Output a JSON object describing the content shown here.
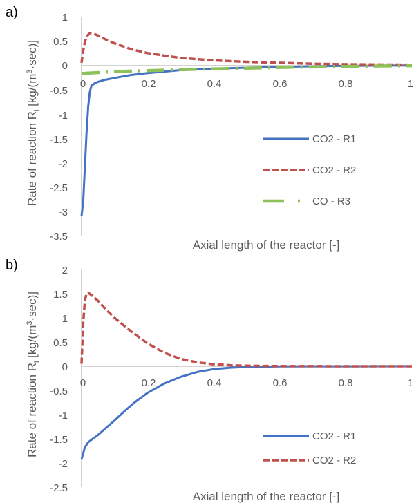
{
  "colors": {
    "r1": "#4472c4",
    "r2": "#c0504d",
    "r3": "#8fc15a",
    "axis": "#a6a6a6",
    "text": "#595959"
  },
  "chart_data": [
    {
      "panel_label": "a)",
      "type": "line",
      "xlabel": "Axial length of the reactor [-]",
      "ylabel_main": "Rate of reaction R",
      "ylabel_sub": "i",
      "ylabel_unit_start": " [kg/(m",
      "ylabel_sup": "3",
      "ylabel_unit_end": "·sec)]",
      "xlim": [
        0,
        1
      ],
      "ylim": [
        -3.5,
        1
      ],
      "x_ticks": [
        "0",
        "0.2",
        "0.4",
        "0.6",
        "0.8",
        "1"
      ],
      "y_ticks": [
        "1",
        "0.5",
        "0",
        "-0.5",
        "-1",
        "-1.5",
        "-2",
        "-2.5",
        "-3",
        "-3.5"
      ],
      "grid": false,
      "legend_position": "right",
      "series": [
        {
          "name": "CO2 - R1",
          "style": "solid",
          "x": [
            0,
            0.005,
            0.01,
            0.015,
            0.02,
            0.025,
            0.03,
            0.04,
            0.05,
            0.07,
            0.1,
            0.15,
            0.2,
            0.3,
            0.4,
            0.5,
            0.6,
            0.7,
            0.8,
            0.9,
            1.0
          ],
          "y": [
            -3.1,
            -2.8,
            -2.1,
            -1.4,
            -0.85,
            -0.55,
            -0.42,
            -0.37,
            -0.34,
            -0.3,
            -0.26,
            -0.2,
            -0.16,
            -0.1,
            -0.07,
            -0.05,
            -0.035,
            -0.02,
            -0.012,
            -0.008,
            -0.005
          ]
        },
        {
          "name": "CO2 - R2",
          "style": "dashed",
          "x": [
            0,
            0.005,
            0.01,
            0.015,
            0.02,
            0.025,
            0.03,
            0.04,
            0.05,
            0.07,
            0.1,
            0.15,
            0.2,
            0.3,
            0.4,
            0.5,
            0.6,
            0.7,
            0.8,
            0.9,
            1.0
          ],
          "y": [
            0.05,
            0.3,
            0.48,
            0.58,
            0.63,
            0.66,
            0.66,
            0.64,
            0.61,
            0.54,
            0.45,
            0.33,
            0.25,
            0.15,
            0.1,
            0.07,
            0.05,
            0.03,
            0.02,
            0.015,
            0.01
          ]
        },
        {
          "name": "CO - R3",
          "style": "dash-dot",
          "x": [
            0,
            0.05,
            0.1,
            0.2,
            0.3,
            0.4,
            0.5,
            0.6,
            0.7,
            0.8,
            0.9,
            1.0
          ],
          "y": [
            -0.17,
            -0.15,
            -0.13,
            -0.11,
            -0.09,
            -0.075,
            -0.06,
            -0.045,
            -0.035,
            -0.025,
            -0.015,
            -0.01
          ]
        }
      ]
    },
    {
      "panel_label": "b)",
      "type": "line",
      "xlabel": "Axial length of the reactor [-]",
      "ylabel_main": "Rate of reaction R",
      "ylabel_sub": "i",
      "ylabel_unit_start": " [kg/(m",
      "ylabel_sup": "3",
      "ylabel_unit_end": "·sec)]",
      "xlim": [
        0,
        1
      ],
      "ylim": [
        -2.5,
        2
      ],
      "x_ticks": [
        "0",
        "0.2",
        "0.4",
        "0.6",
        "0.8",
        "1"
      ],
      "y_ticks": [
        "2",
        "1.5",
        "1",
        "0.5",
        "0",
        "-0.5",
        "-1",
        "-1.5",
        "-2",
        "-2.5"
      ],
      "grid": false,
      "legend_position": "right",
      "series": [
        {
          "name": "CO2 - R1",
          "style": "solid",
          "x": [
            0,
            0.005,
            0.01,
            0.02,
            0.03,
            0.05,
            0.07,
            0.1,
            0.13,
            0.16,
            0.2,
            0.25,
            0.3,
            0.35,
            0.4,
            0.45,
            0.5,
            0.55,
            0.6,
            0.7,
            0.8,
            0.9,
            1.0
          ],
          "y": [
            -1.93,
            -1.8,
            -1.68,
            -1.57,
            -1.52,
            -1.42,
            -1.3,
            -1.12,
            -0.93,
            -0.75,
            -0.55,
            -0.36,
            -0.22,
            -0.12,
            -0.06,
            -0.03,
            -0.015,
            -0.008,
            -0.004,
            -0.002,
            -0.001,
            0,
            0
          ]
        },
        {
          "name": "CO2 - R2",
          "style": "dashed",
          "x": [
            0,
            0.005,
            0.01,
            0.015,
            0.02,
            0.03,
            0.05,
            0.07,
            0.1,
            0.15,
            0.2,
            0.25,
            0.3,
            0.35,
            0.4,
            0.45,
            0.5,
            0.55,
            0.6,
            0.7,
            0.8,
            0.9,
            1.0
          ],
          "y": [
            0.05,
            0.9,
            1.35,
            1.5,
            1.52,
            1.47,
            1.35,
            1.2,
            1.0,
            0.72,
            0.47,
            0.28,
            0.15,
            0.08,
            0.04,
            0.02,
            0.01,
            0.006,
            0.003,
            0.001,
            0,
            0,
            0
          ]
        }
      ]
    }
  ]
}
